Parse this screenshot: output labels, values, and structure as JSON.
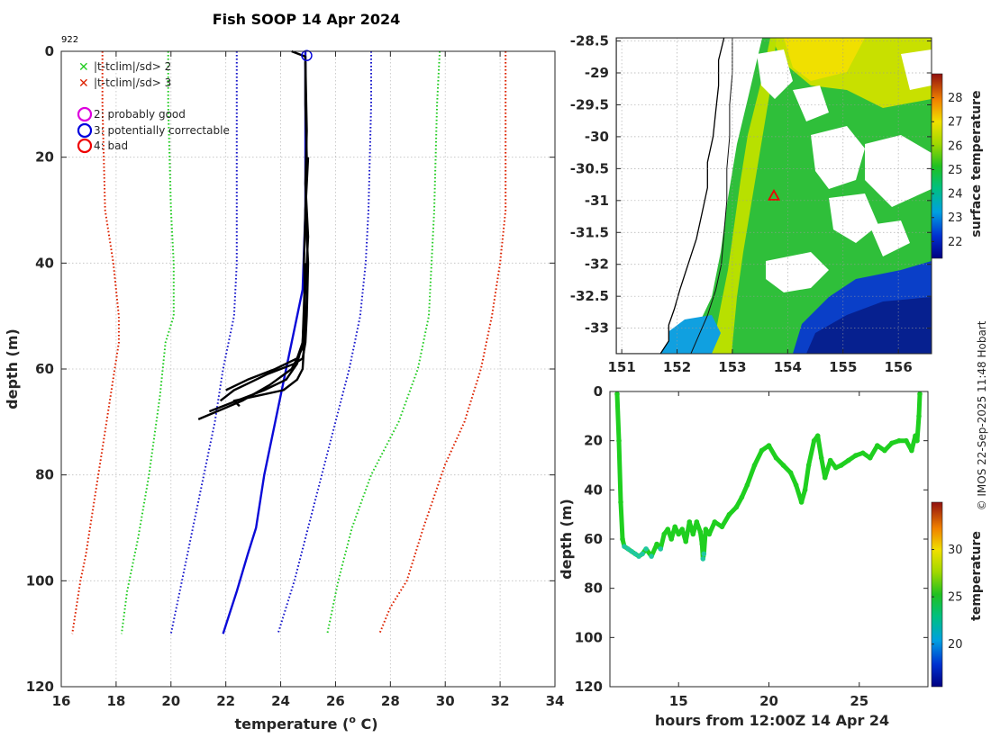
{
  "colors": {
    "qc_limit_2": "#22cc22",
    "qc_limit_3": "#dd2200",
    "clim_sd": "#1a1acc",
    "climatology": "#0a0ad8",
    "profile": "#000000",
    "qc_probably_good": "#dd00dd",
    "qc_correctable": "#0000dd",
    "qc_bad": "#ee0000",
    "grid": "#bfbfbf",
    "timeseries": "#1fcf1f",
    "timeseries_low": "#20c8a0",
    "location_marker": "#ee0000"
  },
  "profile_panel": {
    "title": "Fish SOOP 14 Apr 2024",
    "id_label": "922",
    "xlabel": "temperature (",
    "xlabel_sup": "o",
    "xlabel_end": " C)",
    "ylabel": "depth (m)",
    "legend": {
      "cross2": "|t-tclim|/sd> 2",
      "cross3": "|t-tclim|/sd> 3",
      "flag2": "2: probably good",
      "flag3": "3: potentially correctable",
      "flag4": "4: bad"
    }
  },
  "map_panel": {
    "colorbar_label": "surface temperature"
  },
  "timeseries_panel": {
    "xlabel": "hours from 12:00Z 14 Apr 24",
    "ylabel": "depth (m)",
    "colorbar_label": "temperature"
  },
  "credit": "© IMOS 22-Sep-2025 11:48 Hobart",
  "chart_data": [
    {
      "type": "line",
      "title": "Fish SOOP 14 Apr 2024",
      "xlabel": "temperature (o C)",
      "ylabel": "depth (m)",
      "xlim": [
        16,
        34
      ],
      "ylim": [
        120,
        0
      ],
      "xticks": [
        16,
        18,
        20,
        22,
        24,
        26,
        28,
        30,
        32,
        34
      ],
      "yticks": [
        0,
        20,
        40,
        60,
        80,
        100,
        120
      ],
      "grid": true,
      "legend_position": "top-left",
      "series": [
        {
          "name": "clim-3sd",
          "style": "dotted",
          "color_key": "qc_limit_3",
          "x": [
            17.5,
            17.5,
            17.6,
            17.9,
            18.1,
            18.1,
            17.8,
            17.5,
            17.2,
            16.9,
            16.7,
            16.4
          ],
          "y": [
            0,
            10,
            30,
            40,
            50,
            55,
            65,
            75,
            85,
            95,
            100,
            110
          ]
        },
        {
          "name": "clim-2sd",
          "style": "dotted",
          "color_key": "qc_limit_2",
          "x": [
            19.9,
            19.9,
            20.0,
            20.1,
            20.1,
            19.8,
            19.6,
            19.2,
            18.8,
            18.4,
            18.2
          ],
          "y": [
            0,
            10,
            30,
            40,
            50,
            55,
            65,
            80,
            92,
            102,
            110
          ]
        },
        {
          "name": "clim-1sd",
          "style": "dotted",
          "color_key": "clim_sd",
          "x": [
            22.4,
            22.4,
            22.4,
            22.4,
            22.3,
            21.9,
            21.6,
            21.2,
            20.8,
            20.4,
            20.0
          ],
          "y": [
            0,
            10,
            30,
            40,
            50,
            60,
            70,
            80,
            90,
            100,
            110
          ]
        },
        {
          "name": "climatology",
          "style": "solid",
          "color_key": "climatology",
          "x": [
            24.9,
            24.9,
            24.9,
            24.8,
            24.6,
            24.2,
            23.8,
            23.4,
            23.1,
            22.8,
            22.4,
            21.9
          ],
          "y": [
            0,
            10,
            30,
            45,
            50,
            60,
            70,
            80,
            90,
            95,
            102,
            110
          ]
        },
        {
          "name": "clim+1sd",
          "style": "dotted",
          "color_key": "clim_sd",
          "x": [
            27.3,
            27.3,
            27.2,
            27.1,
            26.9,
            26.5,
            26.0,
            25.5,
            25.0,
            24.5,
            23.9
          ],
          "y": [
            0,
            10,
            30,
            40,
            50,
            60,
            70,
            80,
            90,
            100,
            110
          ]
        },
        {
          "name": "clim+2sd",
          "style": "dotted",
          "color_key": "qc_limit_2",
          "x": [
            29.8,
            29.7,
            29.6,
            29.5,
            29.4,
            29.0,
            28.3,
            27.3,
            26.6,
            26.1,
            25.7
          ],
          "y": [
            0,
            10,
            30,
            40,
            50,
            60,
            70,
            80,
            90,
            100,
            110
          ]
        },
        {
          "name": "clim+3sd",
          "style": "dotted",
          "color_key": "qc_limit_3",
          "x": [
            32.2,
            32.2,
            32.2,
            32.0,
            31.7,
            31.3,
            30.7,
            30.0,
            29.2,
            28.6,
            28.0,
            27.6
          ],
          "y": [
            0,
            10,
            30,
            40,
            50,
            60,
            70,
            78,
            90,
            100,
            105,
            110
          ]
        },
        {
          "name": "profile-1",
          "style": "solid",
          "color_key": "profile",
          "x": [
            24.4,
            24.9,
            24.9,
            24.95,
            24.9,
            25.0,
            24.95,
            24.9,
            24.8,
            24.5,
            23.5,
            22.7,
            22.3,
            21.8
          ],
          "y": [
            0,
            1,
            10,
            20,
            30,
            40,
            50,
            55,
            58,
            59,
            61,
            63,
            64,
            66
          ]
        },
        {
          "name": "profile-2",
          "style": "solid",
          "color_key": "profile",
          "x": [
            24.9,
            24.95,
            24.9,
            25.0,
            24.9,
            24.8,
            24.6,
            23.8,
            22.8,
            22.0
          ],
          "y": [
            2,
            15,
            25,
            35,
            45,
            55,
            58,
            60,
            62,
            64
          ]
        },
        {
          "name": "profile-3",
          "style": "solid",
          "color_key": "profile",
          "x": [
            25.0,
            24.9,
            24.85,
            24.9,
            24.8,
            24.4,
            23.6,
            22.6,
            21.0
          ],
          "y": [
            20,
            30,
            40,
            50,
            56,
            60,
            63,
            66,
            69.5
          ]
        },
        {
          "name": "profile-4",
          "style": "solid",
          "color_key": "profile",
          "x": [
            24.9,
            24.85,
            24.8,
            24.6,
            24.2,
            23.4,
            22.4,
            21.4
          ],
          "y": [
            40,
            48,
            55,
            59,
            62,
            64,
            66,
            68
          ]
        },
        {
          "name": "profile-5",
          "style": "solid",
          "color_key": "profile",
          "x": [
            24.9,
            24.85,
            24.8,
            24.6,
            24.1,
            23.2,
            22.3,
            22.5
          ],
          "y": [
            50,
            56,
            60,
            62,
            64,
            65,
            66,
            67
          ]
        }
      ],
      "annotations": [
        {
          "type": "circle",
          "x": 24.95,
          "y": 0.8,
          "color_key": "qc_correctable"
        }
      ]
    },
    {
      "type": "heatmap",
      "title": "surface temperature",
      "xlim": [
        150.9,
        156.6
      ],
      "ylim": [
        -33.4,
        -28.45
      ],
      "xticks": [
        151,
        152,
        153,
        154,
        155,
        156
      ],
      "xtick_labels": [
        "151",
        "152",
        "153",
        "154",
        "155",
        "156"
      ],
      "yticks": [
        -28.5,
        -29,
        -29.5,
        -30,
        -30.5,
        -31,
        -31.5,
        -32,
        -32.5,
        -33
      ],
      "ytick_labels": [
        "-28.5",
        "-29",
        "-29.5",
        "-30",
        "-30.5",
        "-31",
        "-31.5",
        "-32",
        "-32.5",
        "-33"
      ],
      "colorbar_range": [
        21.3,
        29
      ],
      "colorbar_ticks": [
        22,
        23,
        24,
        25,
        26,
        27,
        28
      ],
      "location_marker": {
        "lon": 153.75,
        "lat": -30.93
      },
      "coastline": {
        "lon": [
          152.85,
          152.75,
          152.75,
          152.7,
          152.65,
          152.55,
          152.55,
          152.45,
          152.35,
          152.2,
          152.05,
          151.95,
          151.85,
          151.85,
          151.7
        ],
        "lat": [
          -28.45,
          -28.8,
          -29.2,
          -29.6,
          -30.0,
          -30.4,
          -30.8,
          -31.2,
          -31.6,
          -32.0,
          -32.4,
          -32.7,
          -32.95,
          -33.2,
          -33.4
        ]
      },
      "shelf_contour": {
        "lon": [
          153.0,
          153.0,
          152.95,
          152.95,
          152.9,
          152.9,
          152.85,
          152.8,
          152.7,
          152.55,
          152.4,
          152.25
        ],
        "lat": [
          -28.45,
          -29.0,
          -29.5,
          -30.0,
          -30.5,
          -31.0,
          -31.5,
          -32.0,
          -32.4,
          -32.8,
          -33.1,
          -33.4
        ]
      }
    },
    {
      "type": "scatter",
      "xlabel": "hours from 12:00Z 14 Apr 24",
      "ylabel": "depth (m)",
      "xlim": [
        11.2,
        28.8
      ],
      "ylim": [
        120,
        0
      ],
      "xticks": [
        15,
        20,
        25
      ],
      "xtick_labels": [
        "15",
        "20",
        "25"
      ],
      "yticks": [
        0,
        20,
        40,
        60,
        80,
        100,
        120
      ],
      "colorbar_range": [
        15.5,
        35
      ],
      "colorbar_ticks": [
        20,
        25,
        30
      ],
      "x": [
        11.6,
        11.7,
        11.8,
        11.9,
        12.0,
        12.2,
        12.4,
        12.6,
        12.8,
        13.0,
        13.2,
        13.5,
        13.8,
        14.0,
        14.2,
        14.4,
        14.6,
        14.8,
        15.0,
        15.2,
        15.4,
        15.6,
        15.8,
        16.0,
        16.2,
        16.3,
        16.35,
        16.4,
        16.5,
        16.7,
        17.0,
        17.4,
        17.8,
        18.2,
        18.5,
        18.8,
        19.2,
        19.6,
        20.0,
        20.4,
        20.8,
        21.2,
        21.5,
        21.8,
        22.0,
        22.2,
        22.5,
        22.7,
        22.9,
        23.1,
        23.4,
        23.7,
        24.0,
        24.4,
        24.8,
        25.2,
        25.6,
        26.0,
        26.4,
        26.8,
        27.2,
        27.6,
        27.9,
        28.1,
        28.2,
        28.3,
        28.35
      ],
      "y": [
        1,
        20,
        45,
        60,
        63,
        64,
        65,
        66,
        67,
        66,
        64,
        67,
        62,
        64,
        58,
        56,
        60,
        55,
        58,
        56,
        61,
        53,
        58,
        53,
        57,
        62,
        68,
        66,
        56,
        58,
        53,
        55,
        50,
        47,
        43,
        38,
        30,
        24,
        22,
        27,
        30,
        33,
        38,
        45,
        40,
        30,
        20,
        18,
        27,
        35,
        28,
        31,
        30,
        28,
        26,
        25,
        27,
        22,
        24,
        21,
        20,
        20,
        24,
        18,
        20,
        10,
        1
      ]
    }
  ]
}
